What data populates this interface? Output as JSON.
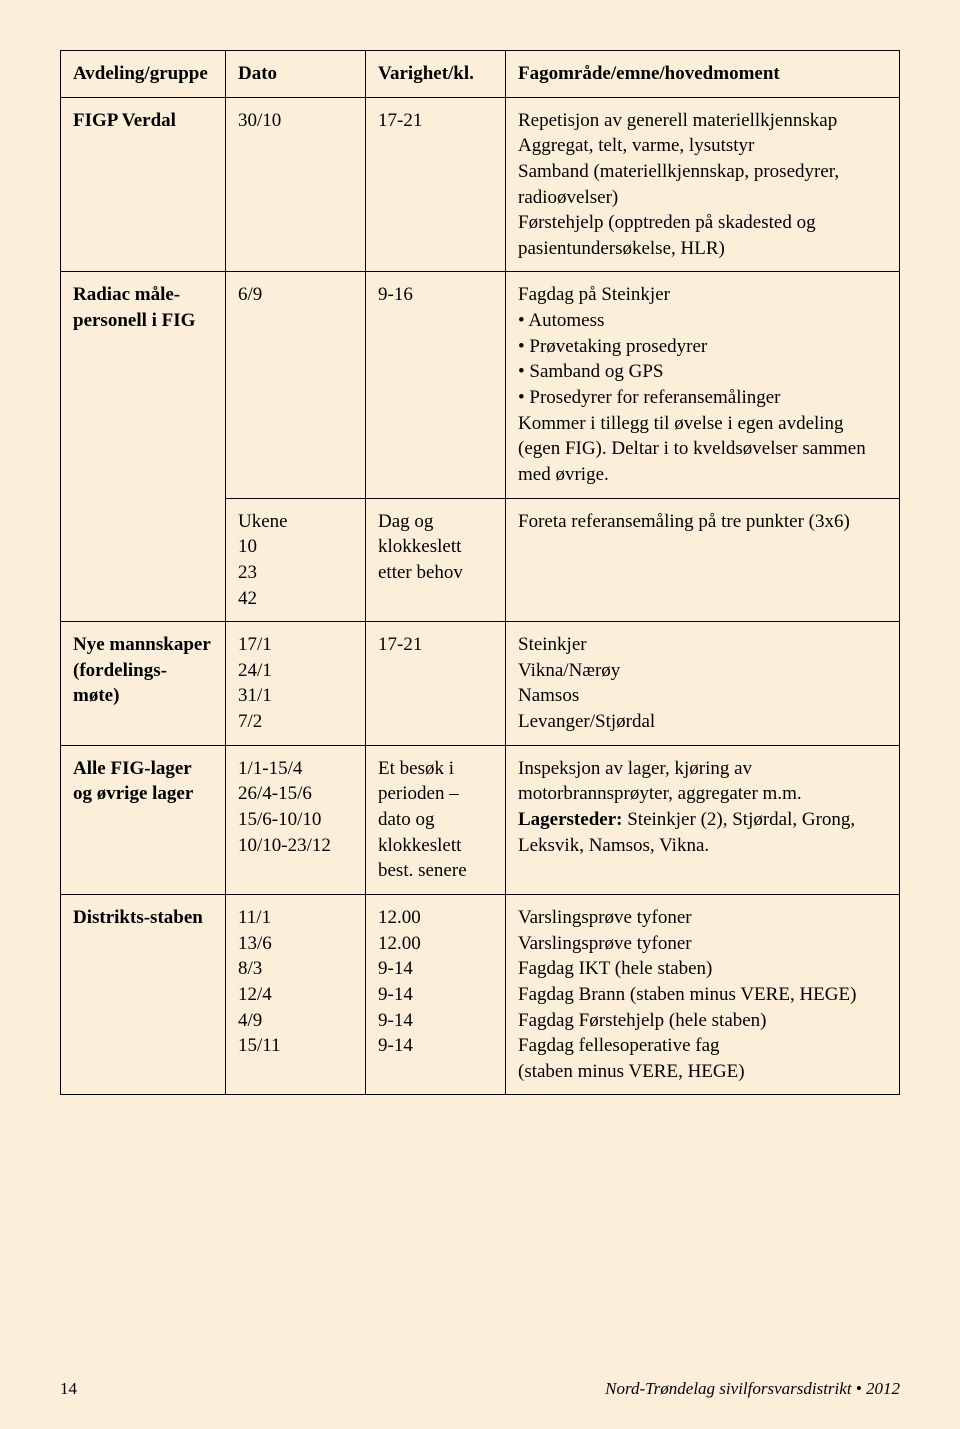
{
  "header": {
    "col1": "Avdeling/gruppe",
    "col2": "Dato",
    "col3": "Varighet/kl.",
    "col4": "Fagområde/emne/hovedmoment"
  },
  "rows": {
    "r1": {
      "group": "FIGP Verdal",
      "date": "30/10",
      "dur": "17-21",
      "line1": "Repetisjon av generell materiellkjennskap",
      "line2": "Aggregat, telt, varme, lysutstyr",
      "line3": "Samband (materiellkjennskap, prosedyrer, radioøvelser)",
      "line4": "Førstehjelp (opptreden på skadested og pasientundersøkelse, HLR)"
    },
    "r2": {
      "group": "Radiac måle-personell i FIG",
      "date": "6/9",
      "dur": "9-16",
      "intro": "Fagdag på Steinkjer",
      "b1": "Automess",
      "b2": "Prøvetaking prosedyrer",
      "b3": "Samband og GPS",
      "b4": "Prosedyrer for referansemålinger",
      "outro": "Kommer i tillegg til øvelse i egen avdeling (egen FIG). Deltar i to kveldsøvelser sammen med øvrige."
    },
    "r2b": {
      "date": "Ukene\n10\n23\n42",
      "dur": "Dag og klokkeslett etter behov",
      "desc": "Foreta referansemåling på tre punkter (3x6)"
    },
    "r3": {
      "group": "Nye mannskaper (fordelings-møte)",
      "date": "17/1\n24/1\n31/1\n7/2",
      "dur": "17-21",
      "desc": "Steinkjer\nVikna/Nærøy\nNamsos\nLevanger/Stjørdal"
    },
    "r4": {
      "group": "Alle FIG-lager og øvrige lager",
      "date": "1/1-15/4\n26/4-15/6\n15/6-10/10\n10/10-23/12",
      "dur": "Et besøk i perioden – dato og klokkeslett best. senere",
      "line1": "Inspeksjon av lager, kjøring av motorbrannsprøyter, aggregater m.m.",
      "line2a": "Lagersteder:",
      "line2b": " Steinkjer (2), Stjørdal, Grong, Leksvik, Namsos, Vikna."
    },
    "r5": {
      "group": "Distrikts-staben",
      "date": "11/1\n13/6\n8/3\n12/4\n4/9\n15/11",
      "dur": "12.00\n12.00\n9-14\n9-14\n9-14\n9-14",
      "desc": "Varslingsprøve tyfoner\nVarslingsprøve tyfoner\nFagdag IKT (hele staben)\nFagdag Brann (staben minus VERE, HEGE)\nFagdag Førstehjelp (hele staben)\nFagdag fellesoperative fag\n(staben minus VERE, HEGE)"
    }
  },
  "footer": {
    "page": "14",
    "title": "Nord-Trøndelag sivilforsvarsdistrikt • 2012"
  },
  "colors": {
    "page_bg": "#fbefd9",
    "border": "#000000",
    "text": "#000000"
  }
}
